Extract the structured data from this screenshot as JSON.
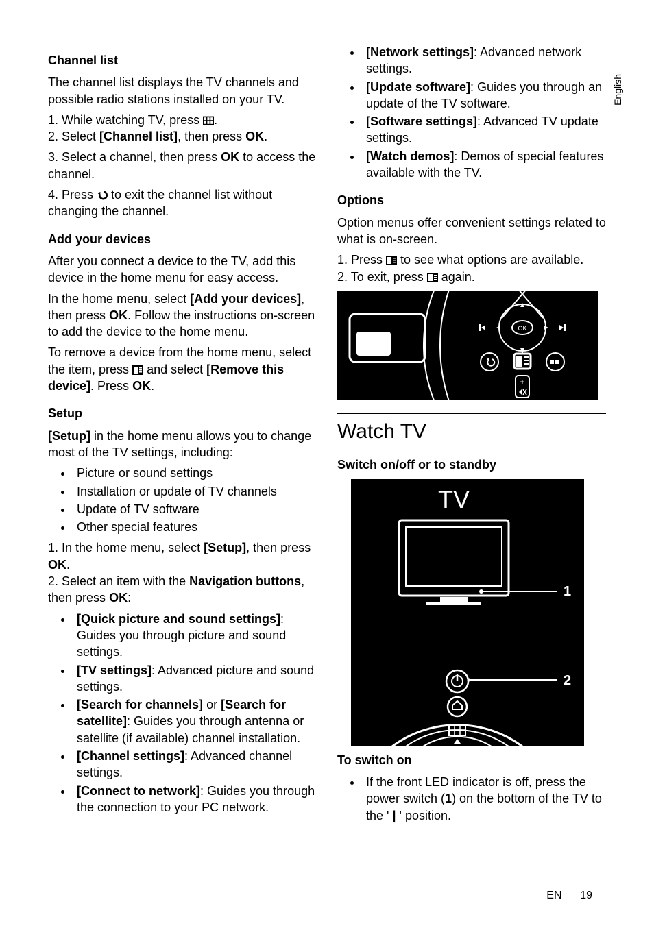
{
  "sidetab": "English",
  "footer": {
    "lang": "EN",
    "page": "19"
  },
  "left": {
    "h_channel": "Channel list",
    "p_channel_intro": "The channel list displays the TV channels and possible radio stations installed on your TV.",
    "p_channel_1a": "1. While watching TV, press ",
    "p_channel_1b": ".",
    "p_channel_2a": "2. Select ",
    "p_channel_2b": "[Channel list]",
    "p_channel_2c": ", then press ",
    "p_channel_2d": "OK",
    "p_channel_2e": ".",
    "p_channel_3a": "3. Select a channel, then press ",
    "p_channel_3b": "OK",
    "p_channel_3c": " to access the channel.",
    "p_channel_4a": "4. Press ",
    "p_channel_4b": " to exit the channel list without changing the channel.",
    "h_add": "Add your devices",
    "p_add_1": "After you connect a device to the TV, add this device in the home menu for easy access.",
    "p_add_2a": "In the home menu, select ",
    "p_add_2b": "[Add your devices]",
    "p_add_2c": ", then press ",
    "p_add_2d": "OK",
    "p_add_2e": ". Follow the instructions on-screen to add the device to the home menu.",
    "p_add_3a": "To remove a device from the home menu, select the item, press ",
    "p_add_3b": " and select ",
    "p_add_3c": "[Remove this device]",
    "p_add_3d": ". Press ",
    "p_add_3e": "OK",
    "p_add_3f": ".",
    "h_setup": "Setup",
    "p_setup_1a": "[Setup]",
    "p_setup_1b": " in the home menu allows you to change most of the TV settings, including:",
    "setup_items": [
      "Picture or sound settings",
      "Installation or update of TV channels",
      "Update of TV software",
      "Other special features"
    ],
    "p_setup_2a": "1. In the home menu, select ",
    "p_setup_2b": "[Setup]",
    "p_setup_2c": ", then press ",
    "p_setup_2d": "OK",
    "p_setup_2e": ".",
    "p_setup_3a": "2. Select an item with the ",
    "p_setup_3b": "Navigation buttons",
    "p_setup_3c": ", then press ",
    "p_setup_3d": "OK",
    "p_setup_3e": ":",
    "setup_opts": [
      {
        "b": "[Quick picture and sound settings]",
        "t": ": Guides you through picture and sound settings."
      },
      {
        "b": "[TV settings]",
        "t": ": Advanced picture and sound settings."
      },
      {
        "b": "[Search for channels]",
        "mid": " or ",
        "b2": "[Search for satellite]",
        "t": ": Guides you through antenna or satellite (if available) channel installation."
      },
      {
        "b": "[Channel settings]",
        "t": ": Advanced channel settings."
      },
      {
        "b": "[Connect to network]",
        "t": ": Guides you through the connection to your PC network."
      }
    ]
  },
  "right": {
    "setup_opts2": [
      {
        "b": "[Network settings]",
        "t": ": Advanced network settings."
      },
      {
        "b": "[Update software]",
        "t": ": Guides you through an update of the TV software."
      },
      {
        "b": "[Software settings]",
        "t": ": Advanced TV update settings."
      },
      {
        "b": "[Watch demos]",
        "t": ": Demos of special features available with the TV."
      }
    ],
    "h_options": "Options",
    "p_opt_1": "Option menus offer convenient settings related to what is on-screen.",
    "p_opt_2a": "1. Press ",
    "p_opt_2b": " to see what options are available.",
    "p_opt_3a": "2. To exit, press ",
    "p_opt_3b": " again.",
    "h_watch": "Watch TV",
    "h_switch": "Switch on/off or to standby",
    "tv_label": "TV",
    "callout1": "1",
    "callout2": "2",
    "h_toswitch": "To switch on",
    "switch_li_a": "If the front LED indicator is off, press the power switch (",
    "switch_li_b": "1",
    "switch_li_c": ") on the bottom of the TV to the ' ",
    "switch_li_d": "|",
    "switch_li_e": " ' position."
  },
  "icons": {
    "grid": "grid-icon",
    "back": "back-icon",
    "options": "options-icon"
  }
}
